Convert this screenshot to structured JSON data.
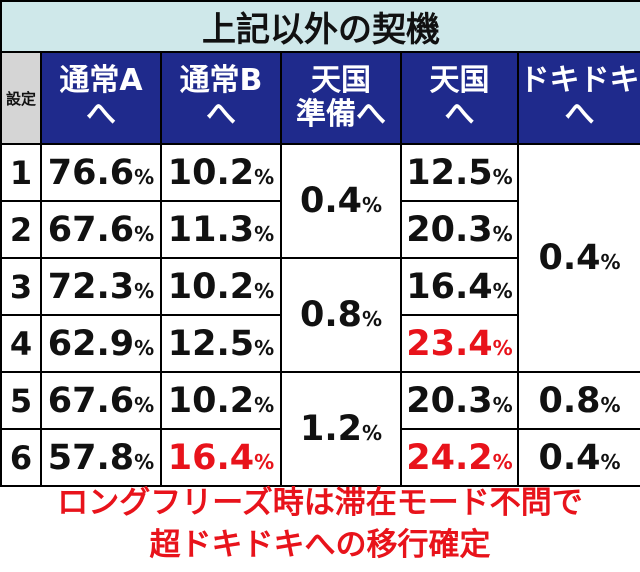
{
  "title": "上記以外の契機",
  "headers": {
    "setting": "設定",
    "normal_a": [
      "通常A",
      "へ"
    ],
    "normal_b": [
      "通常B",
      "へ"
    ],
    "heaven_prep": [
      "天国",
      "準備へ"
    ],
    "heaven": [
      "天国",
      "へ"
    ],
    "dokidoki": [
      "ドキドキ",
      "へ"
    ]
  },
  "rows": [
    {
      "setting": "1",
      "normal_a": "76.6",
      "normal_b": "10.2",
      "heaven": "12.5"
    },
    {
      "setting": "2",
      "normal_a": "67.6",
      "normal_b": "11.3",
      "heaven": "20.3"
    },
    {
      "setting": "3",
      "normal_a": "72.3",
      "normal_b": "10.2",
      "heaven": "16.4"
    },
    {
      "setting": "4",
      "normal_a": "62.9",
      "normal_b": "12.5",
      "heaven": "23.4"
    },
    {
      "setting": "5",
      "normal_a": "67.6",
      "normal_b": "10.2",
      "heaven": "20.3"
    },
    {
      "setting": "6",
      "normal_a": "57.8",
      "normal_b": "16.4",
      "heaven": "24.2"
    }
  ],
  "heaven_prep_merged": [
    "0.4",
    "0.8",
    "1.2"
  ],
  "dokidoki_merged": [
    "0.4",
    "0.8",
    "0.4"
  ],
  "percent_sign": "%",
  "highlight_color": "#e8131b",
  "note": [
    "ロングフリーズ時は滞在モード不問で",
    "超ドキドキへの移行確定"
  ]
}
